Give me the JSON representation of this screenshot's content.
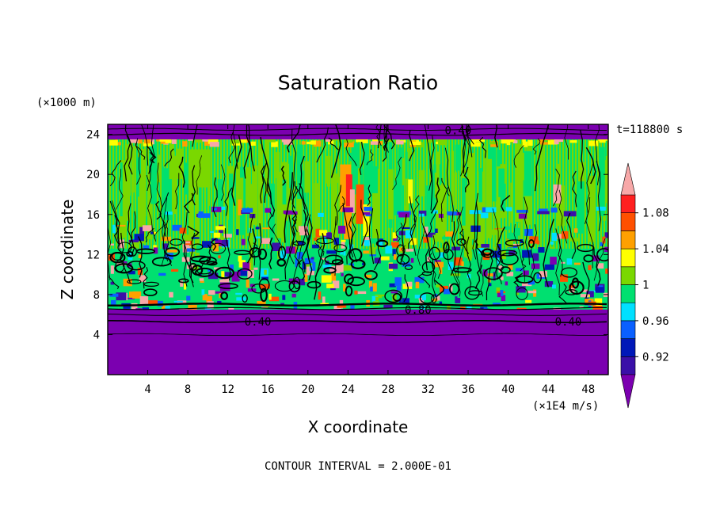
{
  "chart_data": {
    "type": "heatmap",
    "title": "Saturation Ratio",
    "xlabel": "X coordinate",
    "ylabel": "Z coordinate",
    "x_unit": "(×1E4 m/s)",
    "y_unit": "(×1000 m)",
    "xlim": [
      0,
      50
    ],
    "ylim": [
      0,
      25
    ],
    "x_ticks": [
      "4",
      "8",
      "12",
      "16",
      "20",
      "24",
      "28",
      "32",
      "36",
      "40",
      "44",
      "48"
    ],
    "x_tick_values": [
      4,
      8,
      12,
      16,
      20,
      24,
      28,
      32,
      36,
      40,
      44,
      48
    ],
    "y_ticks": [
      "4",
      "8",
      "12",
      "16",
      "20",
      "24"
    ],
    "y_tick_values": [
      4,
      8,
      12,
      16,
      20,
      24
    ],
    "time_label": "t=118800 s",
    "contour_interval": "CONTOUR INTERVAL = 2.000E-01",
    "contour_labels": [
      {
        "text": "0.40",
        "x": 15.0,
        "y": 5.3
      },
      {
        "text": "0.40",
        "x": 46.0,
        "y": 5.3
      },
      {
        "text": "0.80",
        "x": 31.0,
        "y": 6.5
      },
      {
        "text": "0.40",
        "x": 35.0,
        "y": 24.4
      }
    ],
    "colorbar": {
      "labels": [
        "0.92",
        "0.96",
        "1",
        "1.04",
        "1.08"
      ],
      "label_values": [
        0.92,
        0.96,
        1.0,
        1.04,
        1.08
      ],
      "levels": [
        0.9,
        0.92,
        0.94,
        0.96,
        0.98,
        1.0,
        1.02,
        1.04,
        1.06,
        1.08,
        1.1
      ],
      "colors": [
        "#7b00b0",
        "#3a10a8",
        "#0018b8",
        "#0a60ff",
        "#00e0ff",
        "#00e070",
        "#7ad800",
        "#ffff00",
        "#ffa000",
        "#ff5000",
        "#ff2020",
        "#f7a8a8"
      ]
    },
    "layers": [
      {
        "z": [
          0,
          6.5
        ],
        "value": 0.4,
        "color": "#7b00b0"
      },
      {
        "z": [
          6.5,
          9.5
        ],
        "value": 0.99,
        "color": "mixed"
      },
      {
        "z": [
          9.5,
          23.5
        ],
        "value": 1.01,
        "color": "mixed"
      },
      {
        "z": [
          23.5,
          25
        ],
        "value": 0.4,
        "color": "#7b00b0"
      }
    ]
  }
}
